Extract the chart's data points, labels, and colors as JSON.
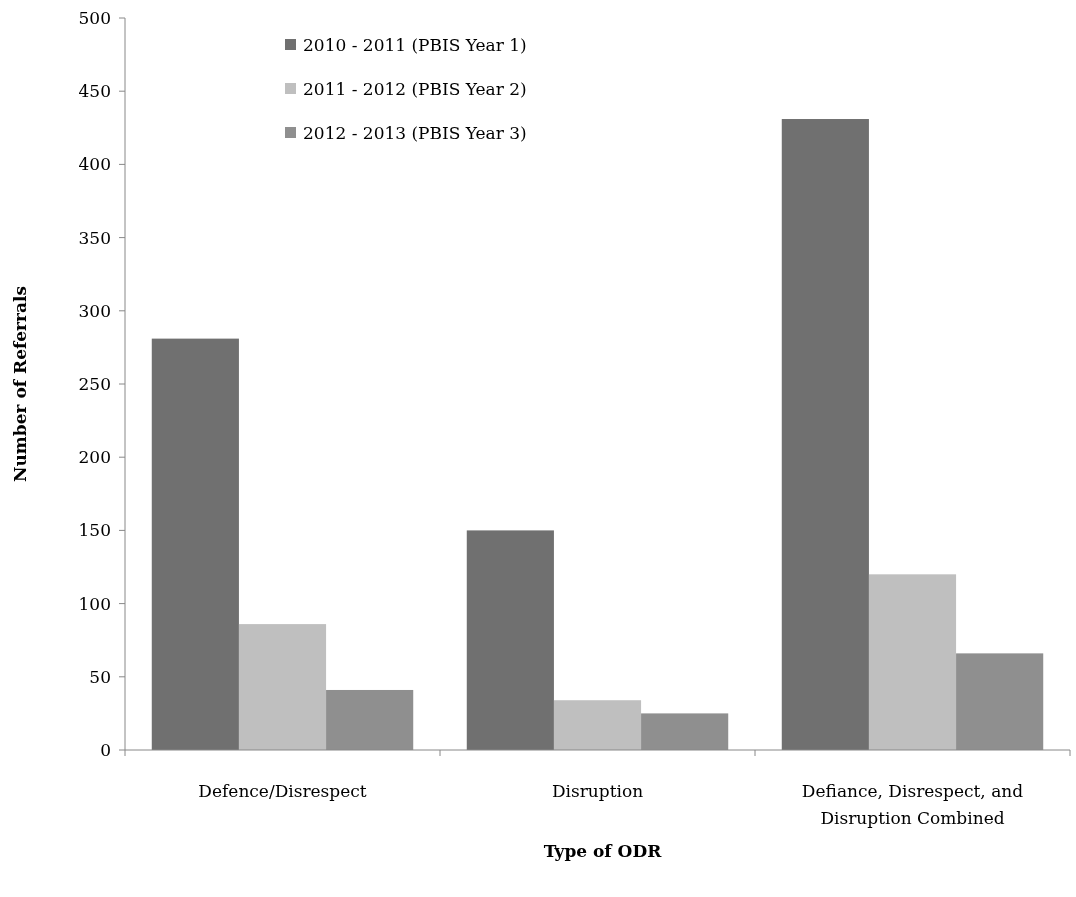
{
  "chart_data": {
    "type": "bar",
    "xlabel": "Type of ODR",
    "ylabel": "Number of Referrals",
    "categories": [
      "Defence/Disrespect",
      "Disruption",
      "Defiance, Disrespect, and Disruption Combined"
    ],
    "series": [
      {
        "name": "2010 - 2011 (PBIS Year 1)",
        "color": "#707070",
        "values": [
          281,
          150,
          431
        ]
      },
      {
        "name": "2011 - 2012 (PBIS Year 2)",
        "color": "#bfbfbf",
        "values": [
          86,
          34,
          120
        ]
      },
      {
        "name": "2012 - 2013 (PBIS Year 3)",
        "color": "#8f8f8f",
        "values": [
          41,
          25,
          66
        ]
      }
    ],
    "ylim": [
      0,
      500
    ],
    "yticks": [
      0,
      50,
      100,
      150,
      200,
      250,
      300,
      350,
      400,
      450,
      500
    ],
    "grid": false,
    "legend": "top left"
  }
}
